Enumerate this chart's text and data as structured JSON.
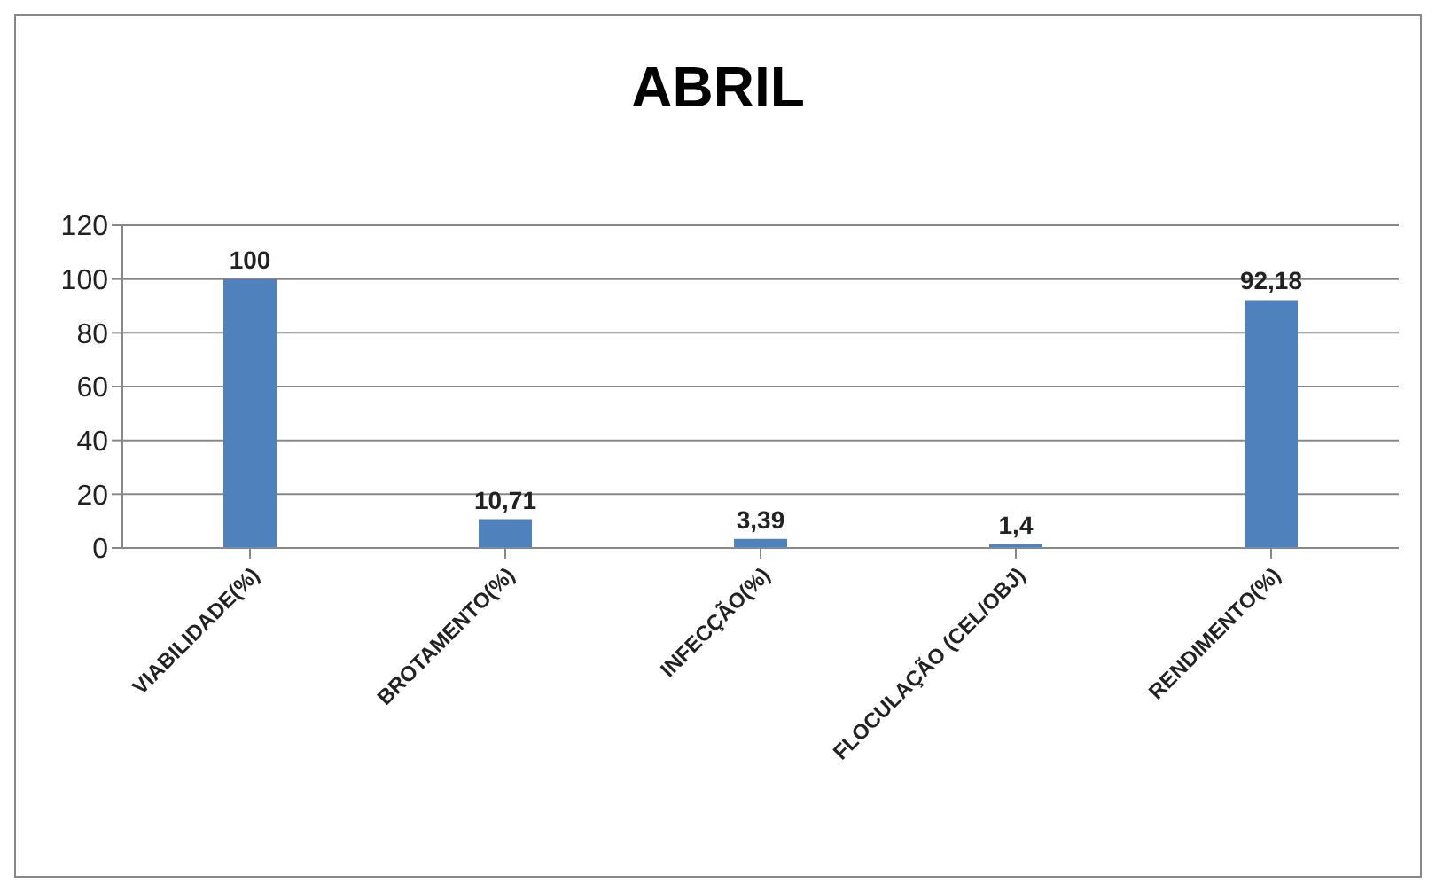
{
  "chart_data": {
    "type": "bar",
    "title": "ABRIL",
    "categories": [
      "VIABILIDADE(%)",
      "BROTAMENTO(%)",
      "INFECÇÃO(%)",
      "FLOCULAÇÃO (CEL/OBJ)",
      "RENDIMENTO(%)"
    ],
    "values": [
      100,
      10.71,
      3.39,
      1.4,
      92.18
    ],
    "value_labels": [
      "100",
      "10,71",
      "3,39",
      "1,4",
      "92,18"
    ],
    "color": "#4f81bd",
    "ylim": [
      0,
      120
    ],
    "yticks": [
      0,
      20,
      40,
      60,
      80,
      100,
      120
    ],
    "grid": "y"
  }
}
